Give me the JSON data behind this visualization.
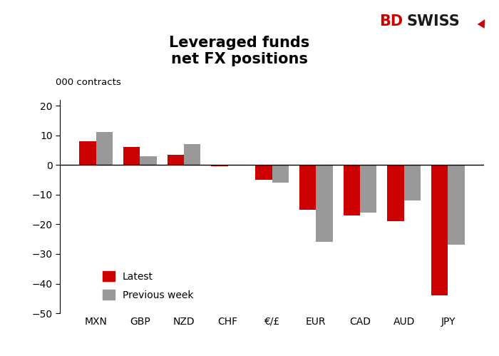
{
  "title": "Leveraged funds\nnet FX positions",
  "ylabel": "000 contracts",
  "categories": [
    "MXN",
    "GBP",
    "NZD",
    "CHF",
    "€/£",
    "EUR",
    "CAD",
    "AUD",
    "JPY"
  ],
  "latest": [
    8,
    6,
    3.5,
    -0.5,
    -5,
    -15,
    -17,
    -19,
    -44
  ],
  "previous_week": [
    11,
    3,
    7,
    0,
    -6,
    -26,
    -16,
    -12,
    -27
  ],
  "latest_color": "#cc0000",
  "prev_color": "#999999",
  "ylim": [
    -50,
    22
  ],
  "yticks": [
    -50,
    -40,
    -30,
    -20,
    -10,
    0,
    10,
    20
  ],
  "bar_width": 0.38,
  "figsize": [
    7.0,
    4.99
  ],
  "dpi": 100,
  "background_color": "#ffffff",
  "title_fontsize": 15,
  "axis_fontsize": 9.5,
  "legend_fontsize": 10,
  "tick_fontsize": 10,
  "legend_latest": "Latest",
  "legend_previous": "Previous week",
  "bdswiss_bd_color": "#cc0000",
  "bdswiss_swiss_color": "#1a1a1a"
}
